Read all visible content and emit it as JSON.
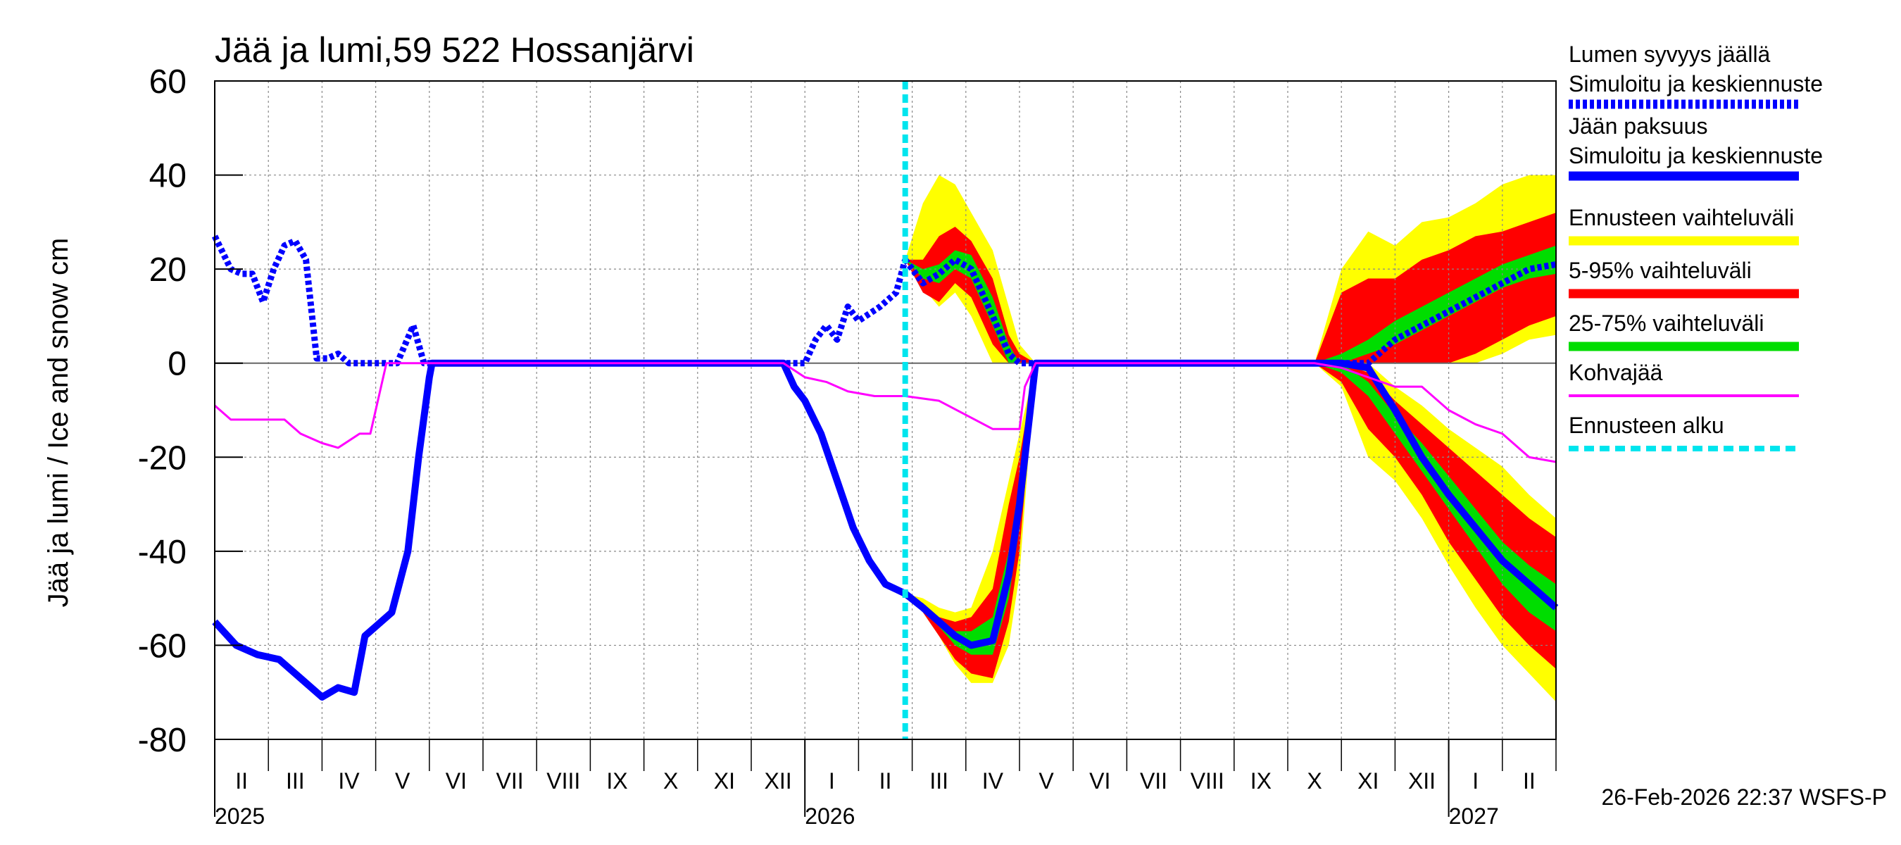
{
  "chart_data": {
    "type": "line",
    "title": "Jää ja lumi,59 522 Hossanjärvi",
    "ylabel": "Jää ja lumi / Ice and snow    cm",
    "ylim": [
      -80,
      60
    ],
    "yticks": [
      60,
      40,
      20,
      0,
      -20,
      -40,
      -60,
      -80
    ],
    "x_range": [
      "2025-02-01",
      "2027-02-28"
    ],
    "x_unit": "month index (0 = Feb 2025)",
    "xlim": [
      0,
      25
    ],
    "month_labels": [
      "II",
      "III",
      "IV",
      "V",
      "VI",
      "VII",
      "VIII",
      "IX",
      "X",
      "XI",
      "XII",
      "I",
      "II",
      "III",
      "IV",
      "V",
      "VI",
      "VII",
      "VIII",
      "IX",
      "X",
      "XI",
      "XII",
      "I",
      "II"
    ],
    "year_labels": [
      {
        "label": "2025",
        "month": 0
      },
      {
        "label": "2026",
        "month": 11
      },
      {
        "label": "2027",
        "month": 23
      }
    ],
    "forecast_start": 12.87,
    "footer": "26-Feb-2026 22:37 WSFS-P",
    "legend": [
      {
        "line1": "Lumen syvyys jäällä",
        "line2": "Simuloitu ja keskiennuste",
        "color": "#0000ff",
        "style": "dotted"
      },
      {
        "line1": "Jään paksuus",
        "line2": "Simuloitu ja keskiennuste",
        "color": "#0000ff",
        "style": "solid"
      },
      {
        "line1": "Ennusteen vaihteluväli",
        "color": "#ffff00",
        "style": "solid"
      },
      {
        "line1": "5-95% vaihteluväli",
        "color": "#ff0000",
        "style": "solid"
      },
      {
        "line1": "25-75% vaihteluväli",
        "color": "#00dd00",
        "style": "solid"
      },
      {
        "line1": "Kohvajää",
        "color": "#ff00ff",
        "style": "thin"
      },
      {
        "line1": "Ennusteen alku",
        "color": "#00e5ee",
        "style": "dashed"
      }
    ],
    "series": [
      {
        "name": "Lumen syvyys jäällä (simuloitu)",
        "x": [
          0,
          0.3,
          0.5,
          0.7,
          0.9,
          1.1,
          1.3,
          1.5,
          1.7,
          1.9,
          2.1,
          2.3,
          2.5,
          2.7,
          3.0,
          3.4,
          3.7,
          3.9,
          4.0,
          11.0,
          11.2,
          11.4,
          11.6,
          11.8,
          12.0,
          12.4,
          12.7,
          12.87
        ],
        "y": [
          27,
          20,
          19,
          19,
          13,
          20,
          25,
          26,
          22,
          1,
          1,
          2,
          0,
          0,
          0,
          0,
          8,
          0,
          0,
          0,
          5,
          8,
          5,
          12,
          9,
          12,
          15,
          22
        ]
      },
      {
        "name": "Lumen syvyys jäällä (keskiennuste)",
        "x": [
          12.87,
          13.2,
          13.5,
          13.8,
          14.1,
          14.5,
          14.8,
          15.0,
          15.3,
          20.5,
          21.0,
          21.5,
          22.0,
          22.5,
          23.0,
          23.5,
          24.0,
          24.5,
          25.0
        ],
        "y": [
          22,
          17,
          19,
          22,
          20,
          10,
          2,
          0,
          0,
          0,
          0,
          0,
          5,
          8,
          11,
          14,
          17,
          20,
          21
        ]
      },
      {
        "name": "Jään paksuus (simuloitu)",
        "x": [
          0,
          0.4,
          0.8,
          1.2,
          1.6,
          2.0,
          2.3,
          2.6,
          2.8,
          3.0,
          3.3,
          3.6,
          3.8,
          4.0,
          4.05,
          10.6,
          10.8,
          11.0,
          11.3,
          11.6,
          11.9,
          12.2,
          12.5,
          12.87
        ],
        "y": [
          -55,
          -60,
          -62,
          -63,
          -67,
          -71,
          -69,
          -70,
          -58,
          -56,
          -53,
          -40,
          -20,
          -3,
          0,
          0,
          -5,
          -8,
          -15,
          -25,
          -35,
          -42,
          -47,
          -49
        ]
      },
      {
        "name": "Jään paksuus (keskiennuste)",
        "x": [
          12.87,
          13.2,
          13.5,
          13.8,
          14.1,
          14.5,
          14.8,
          15.0,
          15.2,
          15.3,
          15.4,
          15.6,
          20.5,
          21.0,
          21.5,
          22.0,
          22.5,
          23.0,
          23.5,
          24.0,
          24.5,
          25.0
        ],
        "y": [
          -49,
          -52,
          -55,
          -58,
          -60,
          -59,
          -45,
          -30,
          -10,
          0,
          0,
          0,
          0,
          0,
          -1,
          -10,
          -20,
          -28,
          -35,
          -42,
          -47,
          -52
        ]
      },
      {
        "name": "Kohvajää",
        "x": [
          0,
          0.3,
          1.0,
          1.3,
          1.6,
          2.0,
          2.3,
          2.7,
          2.9,
          3.1,
          3.2,
          3.5,
          10.6,
          11.0,
          11.4,
          11.8,
          12.3,
          12.87,
          13.5,
          14.0,
          14.5,
          15.0,
          15.1,
          15.3,
          15.5,
          20.5,
          21.0,
          21.5,
          22.0,
          22.5,
          23.0,
          23.5,
          24.0,
          24.5,
          25.0
        ],
        "y": [
          -9,
          -12,
          -12,
          -12,
          -15,
          -17,
          -18,
          -15,
          -15,
          -5,
          0,
          0,
          0,
          -3,
          -4,
          -6,
          -7,
          -7,
          -8,
          -11,
          -14,
          -14,
          -5,
          0,
          0,
          0,
          -1,
          -3,
          -5,
          -5,
          -10,
          -13,
          -15,
          -20,
          -21
        ]
      }
    ],
    "bands": {
      "x": [
        12.87,
        13.2,
        13.5,
        13.8,
        14.1,
        14.5,
        14.8,
        15.0,
        15.3,
        15.6
      ],
      "snow_min": [
        22,
        16,
        12,
        15,
        10,
        0,
        0,
        0,
        0,
        0
      ],
      "snow_max": [
        22,
        34,
        40,
        38,
        32,
        24,
        12,
        4,
        0,
        0
      ],
      "snow_5": [
        22,
        15,
        13,
        17,
        14,
        4,
        0,
        0,
        0,
        0
      ],
      "snow_95": [
        22,
        22,
        27,
        29,
        26,
        18,
        6,
        2,
        0,
        0
      ],
      "snow_25": [
        22,
        18,
        17,
        20,
        18,
        8,
        0,
        0,
        0,
        0
      ],
      "snow_75": [
        22,
        20,
        21,
        24,
        23,
        14,
        4,
        0,
        0,
        0
      ],
      "ice_min": [
        -49,
        -53,
        -58,
        -64,
        -68,
        -68,
        -60,
        -45,
        0,
        0
      ],
      "ice_max": [
        -49,
        -50,
        -52,
        -53,
        -52,
        -40,
        -25,
        -15,
        0,
        0
      ],
      "ice_5": [
        -49,
        -53,
        -58,
        -63,
        -66,
        -67,
        -55,
        -40,
        0,
        0
      ],
      "ice_95": [
        -49,
        -51,
        -54,
        -55,
        -54,
        -48,
        -30,
        -20,
        0,
        0
      ],
      "ice_25": [
        -49,
        -52,
        -56,
        -60,
        -62,
        -62,
        -50,
        -35,
        0,
        0
      ],
      "ice_75": [
        -49,
        -51,
        -54,
        -57,
        -57,
        -54,
        -40,
        -25,
        0,
        0
      ],
      "x2": [
        20.5,
        21.0,
        21.5,
        22.0,
        22.5,
        23.0,
        23.5,
        24.0,
        24.5,
        25.0
      ],
      "snow2_min": [
        0,
        0,
        0,
        0,
        0,
        0,
        0,
        2,
        5,
        6
      ],
      "snow2_max": [
        0,
        20,
        28,
        25,
        30,
        31,
        34,
        38,
        40,
        40
      ],
      "snow2_5": [
        0,
        0,
        0,
        0,
        0,
        0,
        2,
        5,
        8,
        10
      ],
      "snow2_95": [
        0,
        15,
        18,
        18,
        22,
        24,
        27,
        28,
        30,
        32
      ],
      "snow2_25": [
        0,
        0,
        2,
        4,
        7,
        10,
        13,
        16,
        18,
        19
      ],
      "snow2_75": [
        0,
        2,
        5,
        9,
        12,
        15,
        18,
        21,
        23,
        25
      ],
      "ice2_min": [
        0,
        -5,
        -20,
        -25,
        -33,
        -43,
        -52,
        -60,
        -66,
        -72
      ],
      "ice2_max": [
        0,
        0,
        0,
        -5,
        -9,
        -14,
        -18,
        -22,
        -28,
        -33
      ],
      "ice2_5": [
        0,
        -4,
        -14,
        -20,
        -28,
        -38,
        -46,
        -54,
        -60,
        -65
      ],
      "ice2_95": [
        0,
        0,
        -2,
        -8,
        -13,
        -18,
        -23,
        -28,
        -33,
        -37
      ],
      "ice2_25": [
        0,
        -2,
        -7,
        -15,
        -23,
        -31,
        -39,
        -47,
        -53,
        -57
      ],
      "ice2_75": [
        0,
        0,
        -4,
        -11,
        -17,
        -24,
        -31,
        -38,
        -43,
        -47
      ]
    }
  }
}
